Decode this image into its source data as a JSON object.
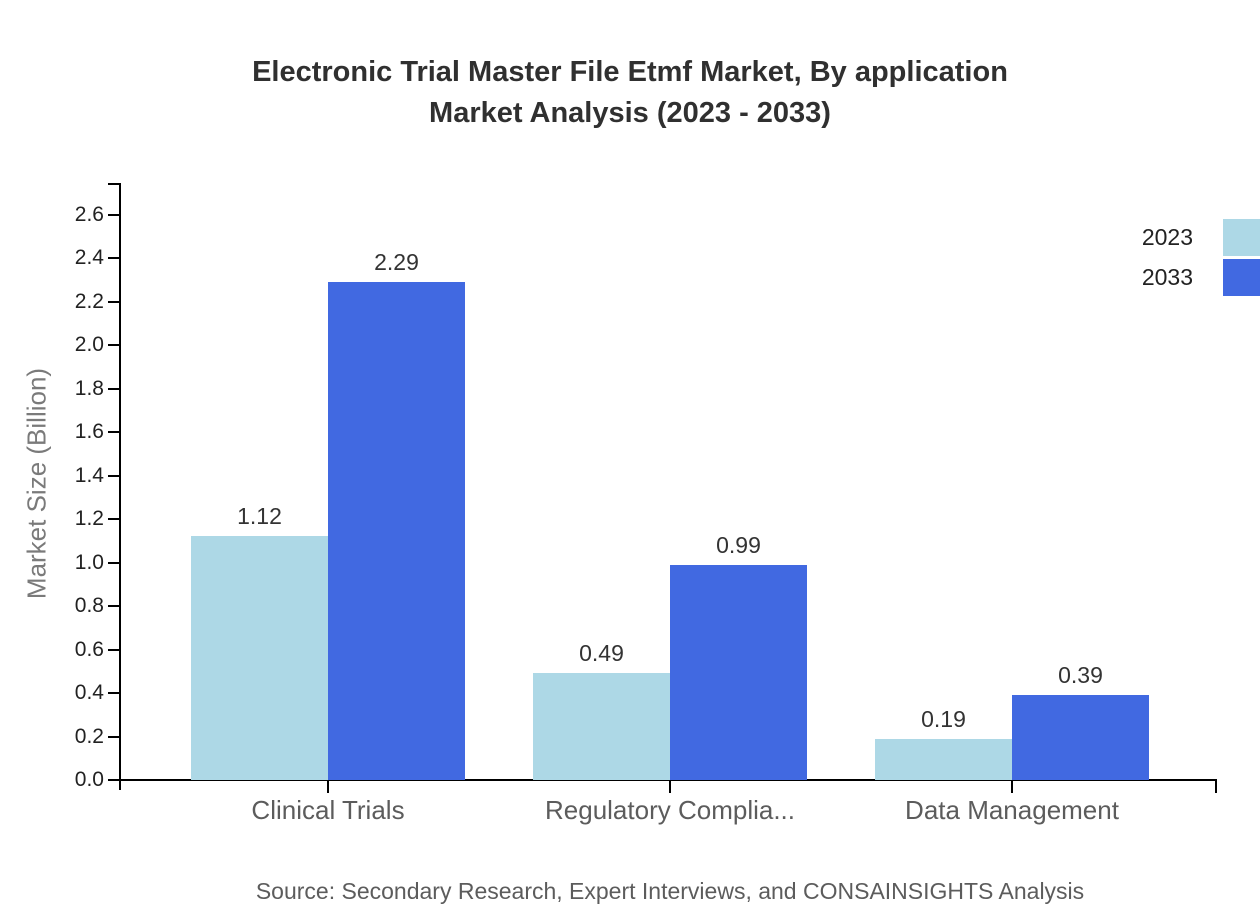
{
  "title": {
    "line1": "Electronic Trial Master File Etmf Market, By application",
    "line2": "Market Analysis (2023 - 2033)"
  },
  "source": "Source: Secondary Research, Expert Interviews, and CONSAINSIGHTS Analysis",
  "chart_data": {
    "type": "bar",
    "title": "Electronic Trial Master File Etmf Market, By application Market Analysis (2023 - 2033)",
    "categories": [
      "Clinical Trials",
      "Regulatory Complia...",
      "Data Management"
    ],
    "series": [
      {
        "name": "2023",
        "color": "#ADD8E6",
        "values": [
          1.12,
          0.49,
          0.19
        ]
      },
      {
        "name": "2033",
        "color": "#4169E1",
        "values": [
          2.29,
          0.99,
          0.39
        ]
      }
    ],
    "xlabel": "",
    "ylabel": "Market Size (Billion)",
    "ylim": [
      0,
      2.6
    ],
    "ytick_step": 0.2,
    "ytick_decimals": 1,
    "grid": false,
    "legend_position": "top-right",
    "value_labels": true,
    "axis_color": "#000000",
    "text_color": "#303030",
    "muted_text_color": "#5c5c5c"
  }
}
